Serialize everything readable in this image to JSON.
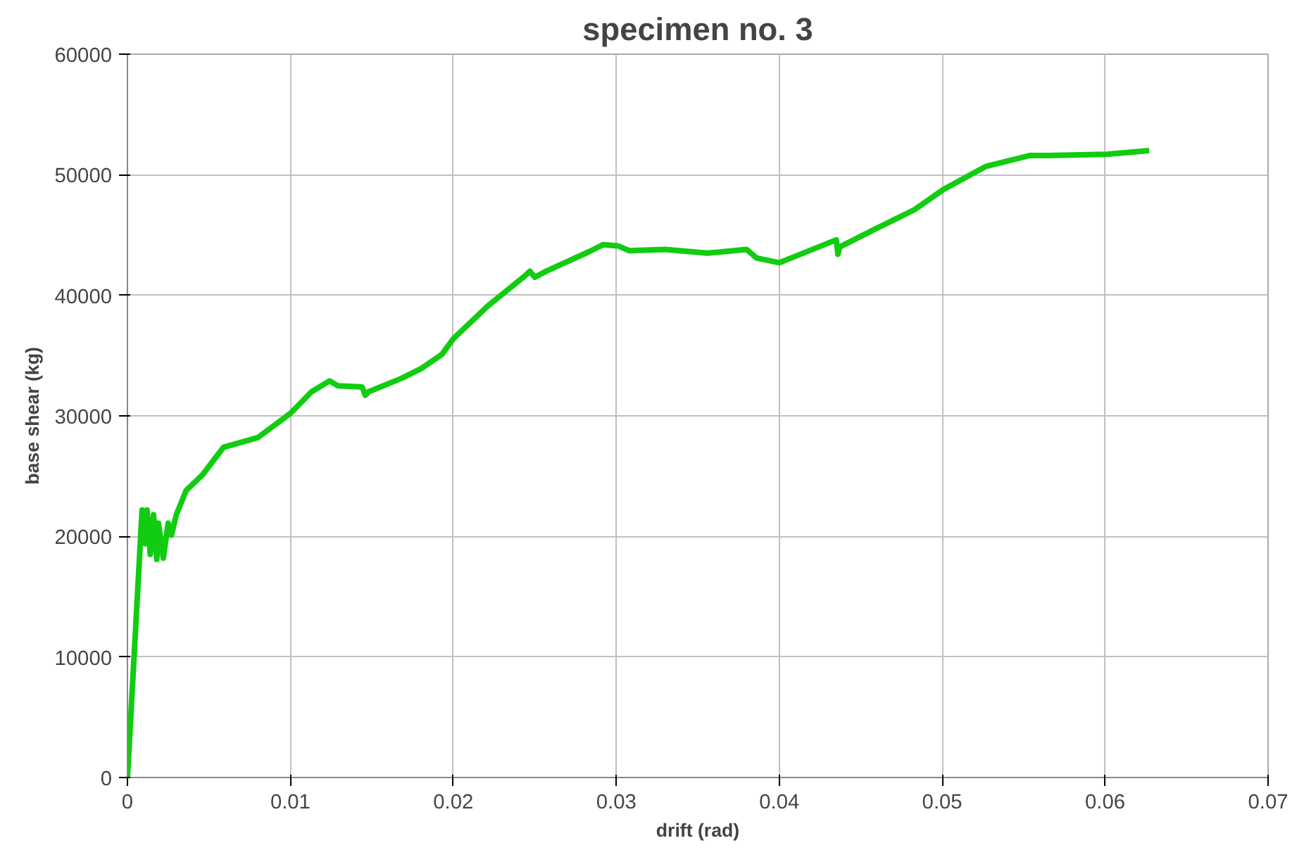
{
  "chart_data": {
    "type": "line",
    "title": "specimen no. 3",
    "xlabel": "drift (rad)",
    "ylabel": "base shear (kg)",
    "xlim": [
      0,
      0.07
    ],
    "ylim": [
      0,
      60000
    ],
    "xticks": [
      0,
      0.01,
      0.02,
      0.03,
      0.04,
      0.05,
      0.06,
      0.07
    ],
    "yticks": [
      0,
      10000,
      20000,
      30000,
      40000,
      50000,
      60000
    ],
    "grid": true,
    "line_style": "solid",
    "series": [
      {
        "color": "#11cc11",
        "x": [
          0,
          0.0009,
          0.0011,
          0.0012,
          0.0014,
          0.0016,
          0.0018,
          0.0019,
          0.0022,
          0.0025,
          0.0027,
          0.003,
          0.0036,
          0.0046,
          0.0059,
          0.008,
          0.01,
          0.0113,
          0.0124,
          0.0129,
          0.0144,
          0.0146,
          0.0148,
          0.0168,
          0.018,
          0.0193,
          0.02,
          0.0221,
          0.0243,
          0.0247,
          0.025,
          0.0257,
          0.0283,
          0.0292,
          0.0301,
          0.0308,
          0.033,
          0.0356,
          0.038,
          0.0386,
          0.04,
          0.0435,
          0.0436,
          0.0437,
          0.0459,
          0.0483,
          0.0501,
          0.0527,
          0.0554,
          0.0565,
          0.0601,
          0.0627
        ],
        "values": [
          0,
          22200,
          19400,
          22200,
          18500,
          21800,
          18100,
          21100,
          18200,
          21100,
          20100,
          21800,
          23800,
          25100,
          27400,
          28200,
          30200,
          32000,
          32900,
          32500,
          32400,
          31700,
          32000,
          33100,
          33900,
          35100,
          36400,
          39100,
          41500,
          42000,
          41500,
          42000,
          43600,
          44200,
          44100,
          43700,
          43800,
          43500,
          43800,
          43100,
          42700,
          44600,
          43400,
          44000,
          45500,
          47100,
          48800,
          50700,
          51600,
          51600,
          51700,
          52000
        ]
      }
    ]
  }
}
